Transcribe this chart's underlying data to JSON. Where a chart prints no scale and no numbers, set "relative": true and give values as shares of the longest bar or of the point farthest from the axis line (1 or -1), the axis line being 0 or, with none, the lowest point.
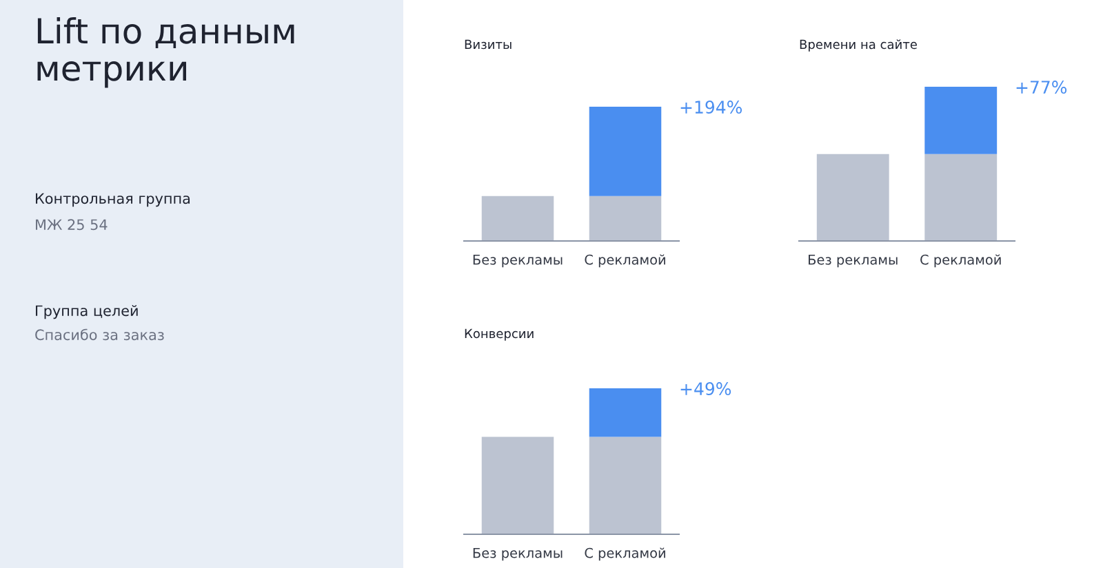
{
  "chart_data": [
    {
      "type": "other",
      "title": "Lift по данным метрики",
      "annotations": [
        "Контрольная группа",
        "МЖ 25 54",
        "Группа целей",
        "Спасибо за заказ"
      ]
    },
    {
      "type": "bar",
      "title": "Визиты",
      "relative": true,
      "stacked": true,
      "categories": [
        "Без рекламы",
        "С рекламой"
      ],
      "series": [
        {
          "color": "#bcc3d1",
          "values": [
            0.335,
            0.335
          ]
        },
        {
          "color": "#4a8ef0",
          "values": [
            null,
            0.665
          ]
        }
      ],
      "annotations": [
        "+194%"
      ]
    },
    {
      "type": "bar",
      "title": "Времени на сайте",
      "relative": true,
      "stacked": true,
      "categories": [
        "Без рекламы",
        "С рекламой"
      ],
      "series": [
        {
          "color": "#bcc3d1",
          "values": [
            0.564,
            0.564
          ]
        },
        {
          "color": "#4a8ef0",
          "values": [
            null,
            0.436
          ]
        }
      ],
      "annotations": [
        "+77%"
      ]
    },
    {
      "type": "bar",
      "title": "Конверсии",
      "relative": true,
      "stacked": true,
      "categories": [
        "Без рекламы",
        "С рекламой"
      ],
      "series": [
        {
          "color": "#bcc3d1",
          "values": [
            0.668,
            0.668
          ]
        },
        {
          "color": "#4a8ef0",
          "values": [
            null,
            0.332
          ]
        }
      ],
      "annotations": [
        "+49%"
      ]
    }
  ]
}
